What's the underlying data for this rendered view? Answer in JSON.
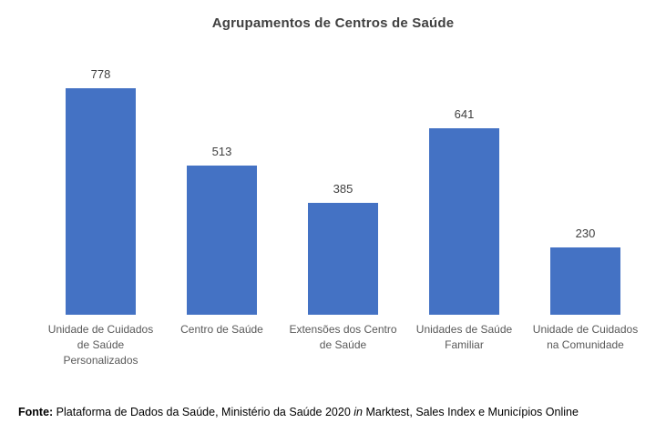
{
  "chart_data": {
    "type": "bar",
    "title": "Agrupamentos de Centros de Saúde",
    "categories": [
      "Unidade de Cuidados de Saúde Personalizados",
      "Centro de Saúde",
      "Extensões dos Centro de Saúde",
      "Unidades de Saúde Familiar",
      "Unidade de Cuidados na Comunidade"
    ],
    "values": [
      778,
      513,
      385,
      641,
      230
    ],
    "xlabel": "",
    "ylabel": "",
    "ylim": [
      0,
      900
    ],
    "grid": false,
    "axes_visible": false,
    "data_labels": true,
    "legend": false,
    "bar_color": "#4472C4"
  },
  "colors": {
    "bar": "#4472C4",
    "title": "#404040",
    "value_label": "#404040",
    "category_label": "#595959",
    "footer_text": "#000000",
    "background": "#ffffff"
  },
  "footer": {
    "label": "Fonte:",
    "text_before_italic": " Plataforma de Dados da Saúde, Ministério da Saúde 2020 ",
    "italic_word": "in",
    "text_after_italic": " Marktest, Sales Index e Municípios Online"
  }
}
